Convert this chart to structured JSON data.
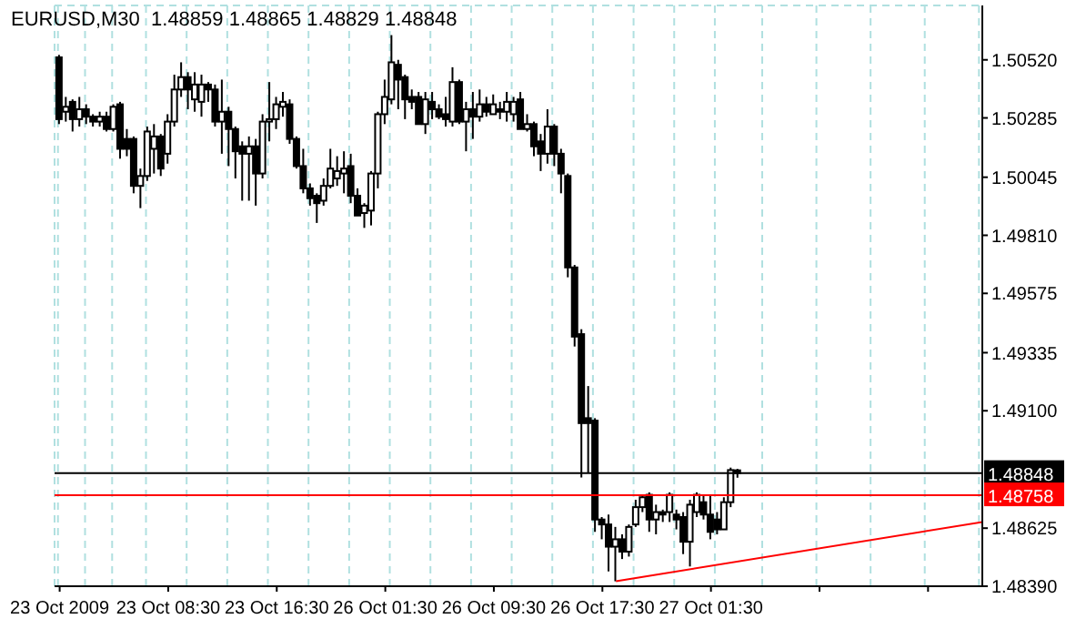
{
  "chart_data": {
    "type": "candlestick",
    "title": "EURUSD,M30  1.48859 1.48865 1.48829 1.48848",
    "categories": [
      "23 Oct 2009",
      null,
      null,
      null,
      null,
      null,
      null,
      null,
      null,
      null,
      null,
      null,
      null,
      null,
      null,
      null,
      "23 Oct 08:30",
      null,
      null,
      null,
      null,
      null,
      null,
      null,
      null,
      null,
      null,
      null,
      null,
      null,
      null,
      null,
      "23 Oct 16:30",
      null,
      null,
      null,
      null,
      null,
      null,
      null,
      null,
      null,
      null,
      null,
      null,
      null,
      null,
      null,
      "26 Oct 01:30",
      null,
      null,
      null,
      null,
      null,
      null,
      null,
      null,
      null,
      null,
      null,
      null,
      null,
      null,
      null,
      "26 Oct 09:30",
      null,
      null,
      null,
      null,
      null,
      null,
      null,
      null,
      null,
      null,
      null,
      null,
      null,
      null,
      null,
      "26 Oct 17:30",
      null,
      null,
      null,
      null,
      null,
      null,
      null,
      null,
      null,
      null,
      null,
      null,
      null,
      null,
      null,
      "27 Oct 01:30",
      null,
      null,
      null,
      null,
      null,
      null,
      null,
      null,
      null,
      null,
      null,
      null,
      null,
      null,
      null,
      null,
      null,
      null,
      null,
      null,
      null,
      null,
      null,
      null,
      null,
      null,
      null,
      null,
      null,
      null,
      null,
      null,
      null,
      null,
      null,
      null,
      null,
      null,
      null,
      null
    ],
    "series": [
      {
        "type": "candlestick",
        "color": "#000000",
        "ohlc": [
          [
            1.5053,
            1.5054,
            1.5026,
            1.5028
          ],
          [
            1.5031,
            1.5037,
            1.5027,
            1.5033
          ],
          [
            1.5035,
            1.5036,
            1.5023,
            1.5028
          ],
          [
            1.5028,
            1.5037,
            1.5025,
            1.5032
          ],
          [
            1.5032,
            1.5034,
            1.5026,
            1.5029
          ],
          [
            1.5029,
            1.503,
            1.5025,
            1.5027
          ],
          [
            1.5027,
            1.5031,
            1.5025,
            1.5029
          ],
          [
            1.5029,
            1.5031,
            1.5023,
            1.5024
          ],
          [
            1.5024,
            1.5034,
            1.5023,
            1.5033
          ],
          [
            1.5034,
            1.5035,
            1.5012,
            1.5016
          ],
          [
            1.502,
            1.5024,
            1.5013,
            1.5016
          ],
          [
            1.502,
            1.5021,
            1.4998,
            1.5001
          ],
          [
            1.5001,
            1.5008,
            1.4992,
            1.5005
          ],
          [
            1.5005,
            1.5025,
            1.5003,
            1.5023
          ],
          [
            1.5016,
            1.5026,
            1.5006,
            1.5021
          ],
          [
            1.5021,
            1.5022,
            1.5005,
            1.5008
          ],
          [
            1.5014,
            1.503,
            1.501,
            1.5027
          ],
          [
            1.5027,
            1.5046,
            1.5025,
            1.504
          ],
          [
            1.504,
            1.5051,
            1.5037,
            1.5045
          ],
          [
            1.5045,
            1.5047,
            1.5032,
            1.504
          ],
          [
            1.5036,
            1.5047,
            1.5031,
            1.5042
          ],
          [
            1.5035,
            1.5046,
            1.5029,
            1.5042
          ],
          [
            1.5042,
            1.5043,
            1.5035,
            1.504
          ],
          [
            1.504,
            1.5042,
            1.5025,
            1.5027
          ],
          [
            1.5027,
            1.5044,
            1.5014,
            1.5031
          ],
          [
            1.5031,
            1.5033,
            1.5009,
            1.5024
          ],
          [
            1.5024,
            1.5025,
            1.5004,
            1.5015
          ],
          [
            1.5017,
            1.5019,
            1.4995,
            1.5014
          ],
          [
            1.5014,
            1.5021,
            1.4995,
            1.5017
          ],
          [
            1.5017,
            1.502,
            1.4993,
            1.5006
          ],
          [
            1.5006,
            1.503,
            1.5004,
            1.5027
          ],
          [
            1.5027,
            1.5043,
            1.5019,
            1.5028
          ],
          [
            1.5028,
            1.5037,
            1.5024,
            1.5034
          ],
          [
            1.5033,
            1.5039,
            1.5029,
            1.5035
          ],
          [
            1.5034,
            1.5036,
            1.5018,
            1.502
          ],
          [
            1.502,
            1.5021,
            1.5008,
            1.5009
          ],
          [
            1.5009,
            1.5016,
            1.4998,
            1.5
          ],
          [
            1.5,
            1.5002,
            1.4993,
            1.4996
          ],
          [
            1.4997,
            1.4998,
            1.4986,
            1.4994
          ],
          [
            1.4995,
            1.5004,
            1.4993,
            1.5001
          ],
          [
            1.5001,
            1.5016,
            1.5,
            1.5008
          ],
          [
            1.5004,
            1.5013,
            1.5001,
            1.5007
          ],
          [
            1.5006,
            1.5015,
            1.4998,
            1.5008
          ],
          [
            1.5009,
            1.5014,
            1.4994,
            1.4997
          ],
          [
            1.4997,
            1.5,
            1.4989,
            1.4989
          ],
          [
            1.499,
            1.4994,
            1.4984,
            1.4993
          ],
          [
            1.4991,
            1.5007,
            1.4985,
            1.5006
          ],
          [
            1.5006,
            1.5031,
            1.5,
            1.503
          ],
          [
            1.503,
            1.5044,
            1.5026,
            1.5037
          ],
          [
            1.5036,
            1.5062,
            1.5034,
            1.5051
          ],
          [
            1.505,
            1.5052,
            1.5032,
            1.5044
          ],
          [
            1.5045,
            1.5046,
            1.5028,
            1.5036
          ],
          [
            1.5037,
            1.504,
            1.5032,
            1.5035
          ],
          [
            1.5037,
            1.5039,
            1.5026,
            1.5026
          ],
          [
            1.5026,
            1.5039,
            1.5022,
            1.5036
          ],
          [
            1.5035,
            1.5039,
            1.5028,
            1.5032
          ],
          [
            1.5032,
            1.5034,
            1.5028,
            1.5029
          ],
          [
            1.503,
            1.5037,
            1.5025,
            1.5028
          ],
          [
            1.5027,
            1.5049,
            1.5025,
            1.5043
          ],
          [
            1.5043,
            1.5044,
            1.5026,
            1.5027
          ],
          [
            1.5027,
            1.5035,
            1.5015,
            1.5032
          ],
          [
            1.5032,
            1.5039,
            1.502,
            1.5029
          ],
          [
            1.5029,
            1.504,
            1.5027,
            1.5034
          ],
          [
            1.5034,
            1.5037,
            1.5029,
            1.5031
          ],
          [
            1.503,
            1.5038,
            1.503,
            1.5034
          ],
          [
            1.5032,
            1.5035,
            1.5028,
            1.5031
          ],
          [
            1.5031,
            1.5039,
            1.5027,
            1.5035
          ],
          [
            1.503,
            1.5037,
            1.5027,
            1.5035
          ],
          [
            1.5036,
            1.5039,
            1.5024,
            1.5024
          ],
          [
            1.5024,
            1.503,
            1.5023,
            1.5026
          ],
          [
            1.5026,
            1.5027,
            1.5013,
            1.5017
          ],
          [
            1.5019,
            1.5022,
            1.5007,
            1.5014
          ],
          [
            1.5014,
            1.5032,
            1.501,
            1.5025
          ],
          [
            1.5025,
            1.5026,
            1.5009,
            1.5014
          ],
          [
            1.5014,
            1.5016,
            1.4998,
            1.5006
          ],
          [
            1.5005,
            1.5006,
            1.4964,
            1.4968
          ],
          [
            1.4968,
            1.4969,
            1.4936,
            1.494
          ],
          [
            1.4941,
            1.4943,
            1.4883,
            1.4905
          ],
          [
            1.4907,
            1.492,
            1.4885,
            1.4905
          ],
          [
            1.4906,
            1.4907,
            1.4861,
            1.4866
          ],
          [
            1.4866,
            1.4867,
            1.4858,
            1.4864
          ],
          [
            1.4864,
            1.4868,
            1.4845,
            1.4855
          ],
          [
            1.4855,
            1.4863,
            1.4841,
            1.4858
          ],
          [
            1.4858,
            1.486,
            1.485,
            1.4853
          ],
          [
            1.4853,
            1.4864,
            1.4851,
            1.4863
          ],
          [
            1.4864,
            1.4874,
            1.4863,
            1.4871
          ],
          [
            1.4871,
            1.4876,
            1.4869,
            1.4875
          ],
          [
            1.4876,
            1.4877,
            1.4861,
            1.4866
          ],
          [
            1.4866,
            1.4872,
            1.486,
            1.4869
          ],
          [
            1.4869,
            1.487,
            1.4865,
            1.4868
          ],
          [
            1.4869,
            1.4877,
            1.4865,
            1.4876
          ],
          [
            1.4868,
            1.487,
            1.4862,
            1.4866
          ],
          [
            1.4867,
            1.4869,
            1.4852,
            1.4857
          ],
          [
            1.4857,
            1.4874,
            1.4847,
            1.4872
          ],
          [
            1.4869,
            1.4877,
            1.4867,
            1.4876
          ],
          [
            1.4873,
            1.4876,
            1.4866,
            1.4868
          ],
          [
            1.4868,
            1.4876,
            1.4858,
            1.4861
          ],
          [
            1.4866,
            1.4869,
            1.486,
            1.4862
          ],
          [
            1.4862,
            1.4875,
            1.4862,
            1.4873
          ],
          [
            1.4873,
            1.4887,
            1.4871,
            1.4886
          ],
          [
            1.48859,
            1.48865,
            1.48829,
            1.48848
          ],
          null,
          null,
          null,
          null,
          null,
          null,
          null,
          null,
          null,
          null,
          null,
          null,
          null,
          null,
          null,
          null,
          null,
          null,
          null,
          null,
          null,
          null,
          null,
          null,
          null,
          null,
          null,
          null,
          null,
          null,
          null,
          null,
          null,
          null,
          null,
          null
        ]
      },
      {
        "type": "line",
        "color": "#ff0000",
        "values": [
          null,
          null,
          null,
          null,
          null,
          null,
          null,
          null,
          null,
          null,
          null,
          null,
          null,
          null,
          null,
          null,
          null,
          null,
          null,
          null,
          null,
          null,
          null,
          null,
          null,
          null,
          null,
          null,
          null,
          null,
          null,
          null,
          null,
          null,
          null,
          null,
          null,
          null,
          null,
          null,
          null,
          null,
          null,
          null,
          null,
          null,
          null,
          null,
          null,
          null,
          null,
          null,
          null,
          null,
          null,
          null,
          null,
          null,
          null,
          null,
          null,
          null,
          null,
          null,
          null,
          null,
          null,
          null,
          null,
          null,
          null,
          null,
          null,
          null,
          null,
          null,
          null,
          null,
          null,
          null,
          null,
          null,
          1.4841,
          null,
          null,
          null,
          null,
          null,
          null,
          null,
          null,
          null,
          null,
          null,
          null,
          null,
          null,
          null,
          null,
          null,
          null,
          null,
          null,
          null,
          null,
          null,
          null,
          null,
          null,
          null,
          null,
          null,
          null,
          null,
          null,
          null,
          null,
          null,
          null,
          null,
          null,
          null,
          null,
          null,
          null,
          null,
          null,
          null,
          null,
          null,
          null,
          null,
          null,
          null,
          null,
          null,
          1.4865
        ]
      }
    ],
    "ylim": [
      1.4839,
      1.5074
    ],
    "yticks": [
      {
        "value": 1.4839,
        "label": "1.48390"
      },
      {
        "value": 1.48625,
        "label": "1.48625"
      },
      {
        "value": 1.491,
        "label": "1.49100"
      },
      {
        "value": 1.49335,
        "label": "1.49335"
      },
      {
        "value": 1.49575,
        "label": "1.49575"
      },
      {
        "value": 1.4981,
        "label": "1.49810"
      },
      {
        "value": 1.50045,
        "label": "1.50045"
      },
      {
        "value": 1.50285,
        "label": "1.50285"
      },
      {
        "value": 1.5052,
        "label": "1.50520"
      }
    ],
    "ref_lines": [
      {
        "axis": "y",
        "value": 1.48848,
        "label": "1.48848",
        "color": "#000000"
      },
      {
        "axis": "y",
        "value": 1.48758,
        "label": "1.48758",
        "color": "#ff0000"
      }
    ],
    "grid": true
  }
}
